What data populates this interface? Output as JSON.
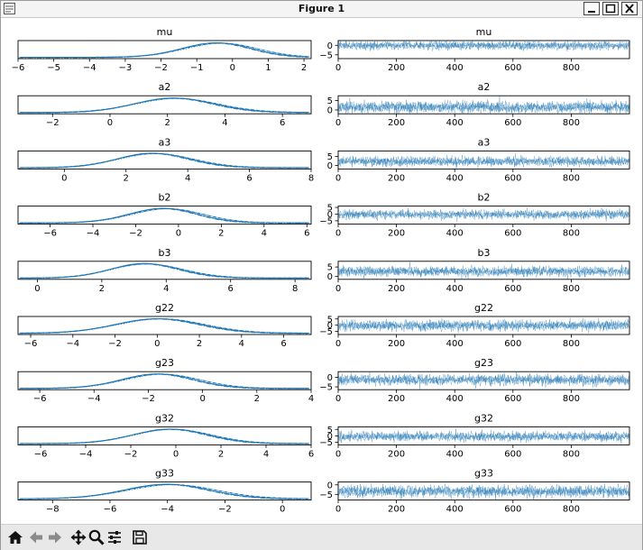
{
  "window": {
    "title": "Figure 1"
  },
  "toolbar": {
    "items": [
      {
        "name": "home-icon",
        "label": "Home"
      },
      {
        "name": "back-icon",
        "label": "Back"
      },
      {
        "name": "forward-icon",
        "label": "Forward"
      },
      {
        "name": "pan-icon",
        "label": "Pan"
      },
      {
        "name": "zoom-icon",
        "label": "Zoom"
      },
      {
        "name": "configure-subplots-icon",
        "label": "Configure subplots"
      },
      {
        "name": "save-icon",
        "label": "Save"
      }
    ]
  },
  "colors": {
    "line": "#1f77b4",
    "trace": "#1f77b4",
    "axis": "#000000",
    "background": "#ffffff"
  },
  "chart_data": [
    {
      "param": "mu",
      "density": {
        "type": "line",
        "xlim": [
          -6.0,
          2.2
        ],
        "xticks": [
          -6,
          -5,
          -4,
          -3,
          -2,
          -1,
          0,
          1,
          2
        ],
        "mean": -0.05,
        "sd": 1.05,
        "skew": -1.6
      },
      "trace": {
        "type": "line",
        "xlim": [
          0,
          1000
        ],
        "xticks": [
          0,
          200,
          400,
          600,
          800
        ],
        "yticks": [
          -5,
          0
        ],
        "ylim": [
          -7,
          2.5
        ],
        "mean": -0.1,
        "sd": 1.05
      }
    },
    {
      "param": "a2",
      "density": {
        "type": "line",
        "xlim": [
          -3.2,
          7.0
        ],
        "xticks": [
          -2,
          0,
          2,
          4,
          6
        ],
        "mean": 1.6,
        "sd": 1.5,
        "skew": 1.8
      },
      "trace": {
        "type": "line",
        "xlim": [
          0,
          1000
        ],
        "xticks": [
          0,
          200,
          400,
          600,
          800
        ],
        "yticks": [
          0,
          5
        ],
        "ylim": [
          -2,
          7.5
        ],
        "mean": 1.5,
        "sd": 1.4
      }
    },
    {
      "param": "a3",
      "density": {
        "type": "line",
        "xlim": [
          -1.5,
          8.0
        ],
        "xticks": [
          0,
          2,
          4,
          6,
          8
        ],
        "mean": 2.3,
        "sd": 1.3,
        "skew": 2.0
      },
      "trace": {
        "type": "line",
        "xlim": [
          0,
          1000
        ],
        "xticks": [
          0,
          200,
          400,
          600,
          800
        ],
        "yticks": [
          0,
          5
        ],
        "ylim": [
          -2,
          8
        ],
        "mean": 2.2,
        "sd": 1.25
      }
    },
    {
      "param": "b2",
      "density": {
        "type": "line",
        "xlim": [
          -7.5,
          6.2
        ],
        "xticks": [
          -6,
          -4,
          -2,
          0,
          2,
          4,
          6
        ],
        "mean": -0.1,
        "sd": 1.7,
        "skew": -1.5
      },
      "trace": {
        "type": "line",
        "xlim": [
          0,
          1000
        ],
        "xticks": [
          0,
          200,
          400,
          600,
          800
        ],
        "yticks": [
          -5,
          0,
          5
        ],
        "ylim": [
          -7.5,
          6
        ],
        "mean": -0.2,
        "sd": 1.6
      }
    },
    {
      "param": "b3",
      "density": {
        "type": "line",
        "xlim": [
          -0.6,
          8.5
        ],
        "xticks": [
          0,
          2,
          4,
          6,
          8
        ],
        "mean": 2.8,
        "sd": 1.2,
        "skew": 2.0
      },
      "trace": {
        "type": "line",
        "xlim": [
          0,
          1000
        ],
        "xticks": [
          0,
          200,
          400,
          600,
          800
        ],
        "yticks": [
          0,
          5
        ],
        "ylim": [
          -1.5,
          8
        ],
        "mean": 2.7,
        "sd": 1.2
      }
    },
    {
      "param": "g22",
      "density": {
        "type": "line",
        "xlim": [
          -6.6,
          7.3
        ],
        "xticks": [
          -6,
          -4,
          -2,
          0,
          2,
          4,
          6
        ],
        "mean": -0.2,
        "sd": 2.0,
        "skew": 0.4
      },
      "trace": {
        "type": "line",
        "xlim": [
          0,
          1000
        ],
        "xticks": [
          0,
          200,
          400,
          600,
          800
        ],
        "yticks": [
          -5,
          0,
          5
        ],
        "ylim": [
          -7.5,
          7
        ],
        "mean": -0.2,
        "sd": 2.0
      }
    },
    {
      "param": "g23",
      "density": {
        "type": "line",
        "xlim": [
          -6.8,
          4.0
        ],
        "xticks": [
          -6,
          -4,
          -2,
          0,
          2,
          4
        ],
        "mean": -1.2,
        "sd": 1.4,
        "skew": -1.3
      },
      "trace": {
        "type": "line",
        "xlim": [
          0,
          1000
        ],
        "xticks": [
          0,
          200,
          400,
          600,
          800
        ],
        "yticks": [
          -5,
          0
        ],
        "ylim": [
          -6.5,
          3
        ],
        "mean": -1.3,
        "sd": 1.35
      }
    },
    {
      "param": "g32",
      "density": {
        "type": "line",
        "xlim": [
          -7.0,
          6.0
        ],
        "xticks": [
          -6,
          -4,
          -2,
          0,
          2,
          4,
          6
        ],
        "mean": -0.7,
        "sd": 1.7,
        "skew": 1.0
      },
      "trace": {
        "type": "line",
        "xlim": [
          0,
          1000
        ],
        "xticks": [
          0,
          200,
          400,
          600,
          800
        ],
        "yticks": [
          -5,
          0,
          5
        ],
        "ylim": [
          -7,
          7
        ],
        "mean": -0.6,
        "sd": 1.7
      }
    },
    {
      "param": "g33",
      "density": {
        "type": "line",
        "xlim": [
          -9.2,
          1.0
        ],
        "xticks": [
          -8,
          -6,
          -4,
          -2,
          0
        ],
        "mean": -3.4,
        "sd": 1.6,
        "skew": -1.7
      },
      "trace": {
        "type": "line",
        "xlim": [
          0,
          1000
        ],
        "xticks": [
          0,
          200,
          400,
          600,
          800
        ],
        "yticks": [
          -5,
          0
        ],
        "ylim": [
          -8,
          1.5
        ],
        "mean": -3.4,
        "sd": 1.5
      }
    }
  ]
}
